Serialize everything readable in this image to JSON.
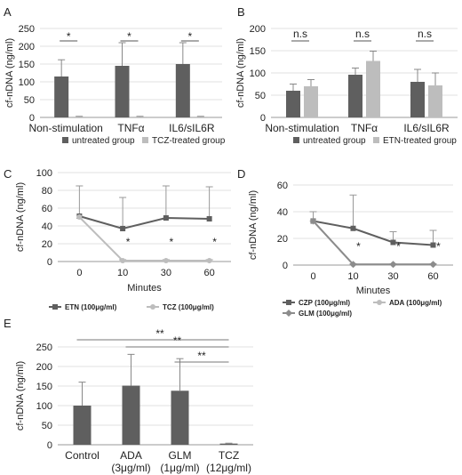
{
  "chart_data": [
    {
      "panel": "A",
      "type": "bar",
      "ylabel": "cf-nDNA (ng/ml)",
      "ylim": [
        0,
        250
      ],
      "yticks": [
        0,
        50,
        100,
        150,
        200,
        250
      ],
      "categories": [
        "Non-stimulation",
        "TNFα",
        "IL6/sIL6R"
      ],
      "series": [
        {
          "name": "untreated group",
          "color": "#5f5f5f",
          "values": [
            115,
            145,
            150
          ],
          "errors": [
            47,
            65,
            60
          ]
        },
        {
          "name": "TCZ-treated group",
          "color": "#bdbdbd",
          "values": [
            2,
            2,
            2
          ],
          "errors": [
            1,
            1,
            1
          ]
        }
      ],
      "annotations": [
        "*",
        "*",
        "*"
      ],
      "legend": "bottom"
    },
    {
      "panel": "B",
      "type": "bar",
      "ylabel": "cf-nDNA (ng/ml)",
      "ylim": [
        0,
        200
      ],
      "yticks": [
        0,
        50,
        100,
        150,
        200
      ],
      "categories": [
        "Non-stimulation",
        "TNFα",
        "IL6/sIL6R"
      ],
      "series": [
        {
          "name": "untreated group",
          "color": "#5f5f5f",
          "values": [
            60,
            96,
            80
          ],
          "errors": [
            15,
            15,
            28
          ]
        },
        {
          "name": "ETN-treated group",
          "color": "#bdbdbd",
          "values": [
            70,
            127,
            72
          ],
          "errors": [
            15,
            22,
            28
          ]
        }
      ],
      "annotations": [
        "n.s",
        "n.s",
        "n.s"
      ],
      "legend": "bottom"
    },
    {
      "panel": "C",
      "type": "line",
      "ylabel": "cf-nDNA (ng/ml)",
      "xlabel": "Minutes",
      "x": [
        "0",
        "10",
        "30",
        "60"
      ],
      "ylim": [
        0,
        100
      ],
      "yticks": [
        0,
        20,
        40,
        60,
        80,
        100
      ],
      "series": [
        {
          "name": "ETN (100μg/ml)",
          "color": "#5f5f5f",
          "marker": "square",
          "values": [
            51,
            37,
            49,
            48
          ],
          "errors": [
            34,
            35,
            36,
            36
          ]
        },
        {
          "name": "TCZ (100μg/ml)",
          "color": "#bdbdbd",
          "marker": "circle",
          "values": [
            50,
            1,
            1,
            1
          ],
          "errors": [
            0,
            1,
            1,
            1
          ]
        }
      ],
      "annotations": [
        {
          "x": "10",
          "text": "*"
        },
        {
          "x": "30",
          "text": "*"
        },
        {
          "x": "60",
          "text": "*"
        }
      ],
      "legend": "bottom"
    },
    {
      "panel": "D",
      "type": "line",
      "ylabel": "cf-nDNA (ng/ml)",
      "xlabel": "Minutes",
      "x": [
        "0",
        "10",
        "30",
        "60"
      ],
      "ylim": [
        0,
        60
      ],
      "yticks": [
        0,
        20,
        40,
        60
      ],
      "series": [
        {
          "name": "CZP (100μg/ml)",
          "color": "#5f5f5f",
          "marker": "square",
          "values": [
            33,
            27.5,
            17,
            15
          ],
          "errors": [
            7,
            25,
            8,
            11
          ]
        },
        {
          "name": "ADA (100μg/ml)",
          "color": "#bdbdbd",
          "marker": "circle",
          "values": [
            33,
            0.5,
            0.5,
            0.5
          ],
          "errors": [
            0,
            0.5,
            0.5,
            0.5
          ]
        },
        {
          "name": "GLM (100μg/ml)",
          "color": "#8c8c8c",
          "marker": "diamond",
          "values": [
            33,
            0.5,
            0.5,
            0.5
          ],
          "errors": [
            0,
            0.5,
            0.5,
            0.5
          ]
        }
      ],
      "annotations": [
        {
          "x": "10",
          "text": "*"
        },
        {
          "x": "30",
          "text": "*"
        },
        {
          "x": "60",
          "text": "*"
        }
      ],
      "legend": "bottom"
    },
    {
      "panel": "E",
      "type": "bar",
      "ylabel": "cf-nDNA (ng/ml)",
      "ylim": [
        0,
        250
      ],
      "yticks": [
        0,
        50,
        100,
        150,
        200,
        250
      ],
      "categories": [
        "Control",
        "ADA",
        "GLM",
        "TCZ"
      ],
      "subcategories": [
        "",
        "(3μg/ml)",
        "(1μg/ml)",
        "(12μg/ml)"
      ],
      "series": [
        {
          "name": "",
          "color": "#5f5f5f",
          "values": [
            100,
            151,
            138,
            3
          ],
          "errors": [
            60,
            80,
            82,
            1
          ]
        }
      ],
      "brackets": [
        {
          "from": 0,
          "to": 3,
          "text": "**"
        },
        {
          "from": 1,
          "to": 3,
          "text": "**"
        },
        {
          "from": 2,
          "to": 3,
          "text": "**"
        }
      ]
    }
  ]
}
